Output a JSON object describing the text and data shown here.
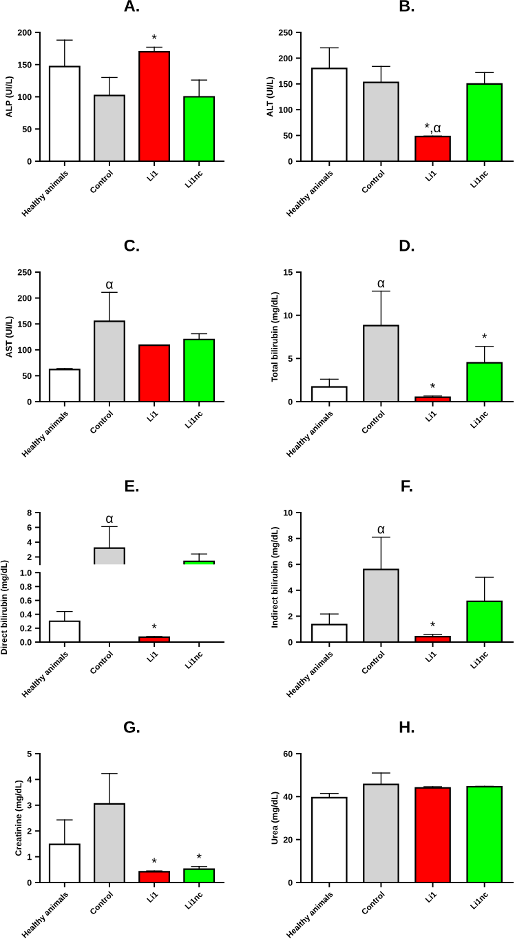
{
  "chart_data": [
    {
      "type": "bar",
      "title": "A.",
      "ylabel": "ALP (UI/L)",
      "categories": [
        "Healthy animals",
        "Control",
        "Li1",
        "Li1nc"
      ],
      "colors": [
        "#ffffff",
        "#d3d3d3",
        "#ff0000",
        "#00ff00"
      ],
      "values": [
        147,
        102,
        170,
        100
      ],
      "errors": [
        [
          147,
          188
        ],
        [
          102,
          130
        ],
        [
          170,
          177
        ],
        [
          100,
          126
        ]
      ],
      "ylim": [
        0,
        200
      ],
      "yticks": [
        0,
        50,
        100,
        150,
        200
      ],
      "annotations": [
        {
          "text": "*",
          "x": "Li1",
          "y": 177
        }
      ]
    },
    {
      "type": "bar",
      "title": "B.",
      "ylabel": "ALT (UI/L)",
      "categories": [
        "Healthy animals",
        "Control",
        "Li1",
        "Li1nc"
      ],
      "colors": [
        "#ffffff",
        "#d3d3d3",
        "#ff0000",
        "#00ff00"
      ],
      "values": [
        180,
        153,
        48,
        150
      ],
      "errors": [
        [
          180,
          220
        ],
        [
          153,
          184
        ],
        [
          48,
          49
        ],
        [
          150,
          172
        ]
      ],
      "ylim": [
        0,
        250
      ],
      "yticks": [
        0,
        50,
        100,
        150,
        200,
        250
      ],
      "annotations": [
        {
          "text": "*,α",
          "x": "Li1",
          "y": 49
        }
      ]
    },
    {
      "type": "bar",
      "title": "C.",
      "ylabel": "AST (UI/L)",
      "categories": [
        "Healthy animals",
        "Control",
        "Li1",
        "Li1nc"
      ],
      "colors": [
        "#ffffff",
        "#d3d3d3",
        "#ff0000",
        "#00ff00"
      ],
      "values": [
        62,
        155,
        109,
        120
      ],
      "errors": [
        [
          62,
          64
        ],
        [
          155,
          211
        ],
        null,
        [
          120,
          131
        ]
      ],
      "ylim": [
        0,
        250
      ],
      "yticks": [
        0,
        50,
        100,
        150,
        200,
        250
      ],
      "annotations": [
        {
          "text": "α",
          "x": "Control",
          "y": 211
        }
      ]
    },
    {
      "type": "bar",
      "title": "D.",
      "ylabel": "Total bilirubin (mg/dL)",
      "categories": [
        "Healthy animals",
        "Control",
        "Li1",
        "Li1nc"
      ],
      "colors": [
        "#ffffff",
        "#d3d3d3",
        "#ff0000",
        "#00ff00"
      ],
      "values": [
        1.7,
        8.8,
        0.5,
        4.5
      ],
      "errors": [
        [
          1.7,
          2.6
        ],
        [
          8.8,
          12.8
        ],
        [
          0.5,
          0.65
        ],
        [
          4.5,
          6.4
        ]
      ],
      "ylim": [
        0,
        15
      ],
      "yticks": [
        0,
        5,
        10,
        15
      ],
      "annotations": [
        {
          "text": "α",
          "x": "Control",
          "y": 12.8
        },
        {
          "text": "*",
          "x": "Li1",
          "y": 0.65
        },
        {
          "text": "*",
          "x": "Li1nc",
          "y": 6.4
        }
      ]
    },
    {
      "type": "bar",
      "title": "E.",
      "categories": [
        "Healthy animals",
        "Control",
        "Li1",
        "Li1nc"
      ],
      "colors": [
        "#ffffff",
        "#d3d3d3",
        "#ff0000",
        "#00ff00"
      ],
      "values": [
        null,
        3.2,
        null,
        1.4
      ],
      "errors": [
        null,
        [
          3.2,
          6.1
        ],
        null,
        [
          1.4,
          2.4
        ]
      ],
      "ylim": [
        1,
        8
      ],
      "yticks": [
        2,
        4,
        6,
        8
      ],
      "tick_labels": "y",
      "annotations": [
        {
          "text": "α",
          "x": "Control",
          "y": 6.1
        }
      ]
    },
    {
      "type": "bar",
      "ylabel": "Direct bilirubin (mg/dL)",
      "categories": [
        "Healthy animals",
        "Control",
        "Li1",
        "Li1nc"
      ],
      "colors": [
        "#ffffff",
        "#d3d3d3",
        "#ff0000",
        "#00ff00"
      ],
      "values": [
        0.3,
        null,
        0.07,
        null
      ],
      "errors": [
        [
          0.3,
          0.44
        ],
        null,
        [
          0.07,
          0.08
        ],
        null
      ],
      "ylim": [
        0,
        1
      ],
      "yticks": [
        {
          "value": 0,
          "label": "0.0"
        },
        0.2,
        0.4,
        0.6,
        0.8,
        {
          "value": 1,
          "label": "1.0"
        }
      ],
      "annotations": [
        {
          "text": "*",
          "x": "Li1",
          "y": 0.08
        }
      ]
    },
    {
      "type": "bar",
      "title": "F.",
      "ylabel": "Indirect bilirubin (mg/dL)",
      "categories": [
        "Healthy animals",
        "Control",
        "Li1",
        "Li1nc"
      ],
      "colors": [
        "#ffffff",
        "#d3d3d3",
        "#ff0000",
        "#00ff00"
      ],
      "values": [
        1.35,
        5.6,
        0.42,
        3.15
      ],
      "errors": [
        [
          1.35,
          2.17
        ],
        [
          5.6,
          8.1
        ],
        [
          0.42,
          0.58
        ],
        [
          3.15,
          5.0
        ]
      ],
      "ylim": [
        0,
        10
      ],
      "yticks": [
        0,
        2,
        4,
        6,
        8,
        10
      ],
      "annotations": [
        {
          "text": "α",
          "x": "Control",
          "y": 8.1
        },
        {
          "text": "*",
          "x": "Li1",
          "y": 0.58
        }
      ]
    },
    {
      "type": "bar",
      "title": "G.",
      "ylabel": "Creatinine (mg/dL)",
      "categories": [
        "Healthy animals",
        "Control",
        "Li1",
        "Li1nc"
      ],
      "colors": [
        "#ffffff",
        "#d3d3d3",
        "#ff0000",
        "#00ff00"
      ],
      "values": [
        1.48,
        3.05,
        0.42,
        0.52
      ],
      "errors": [
        [
          1.48,
          2.43
        ],
        [
          3.05,
          4.23
        ],
        [
          0.42,
          0.45
        ],
        [
          0.52,
          0.62
        ]
      ],
      "ylim": [
        0,
        5
      ],
      "yticks": [
        0,
        1,
        2,
        3,
        4,
        5
      ],
      "annotations": [
        {
          "text": "*",
          "x": "Li1",
          "y": 0.45
        },
        {
          "text": "*",
          "x": "Li1nc",
          "y": 0.62
        }
      ]
    },
    {
      "type": "bar",
      "title": "H.",
      "ylabel": "Urea (mg/dL)",
      "categories": [
        "Healthy animals",
        "Control",
        "Li1",
        "Li1nc"
      ],
      "colors": [
        "#ffffff",
        "#d3d3d3",
        "#ff0000",
        "#00ff00"
      ],
      "values": [
        39.5,
        45.7,
        44.1,
        44.6
      ],
      "errors": [
        [
          39.5,
          41.5
        ],
        [
          45.7,
          51
        ],
        [
          44.1,
          44.6
        ],
        [
          44.6,
          44.8
        ]
      ],
      "ylim": [
        0,
        60
      ],
      "yticks": [
        0,
        20,
        40,
        60
      ]
    }
  ]
}
